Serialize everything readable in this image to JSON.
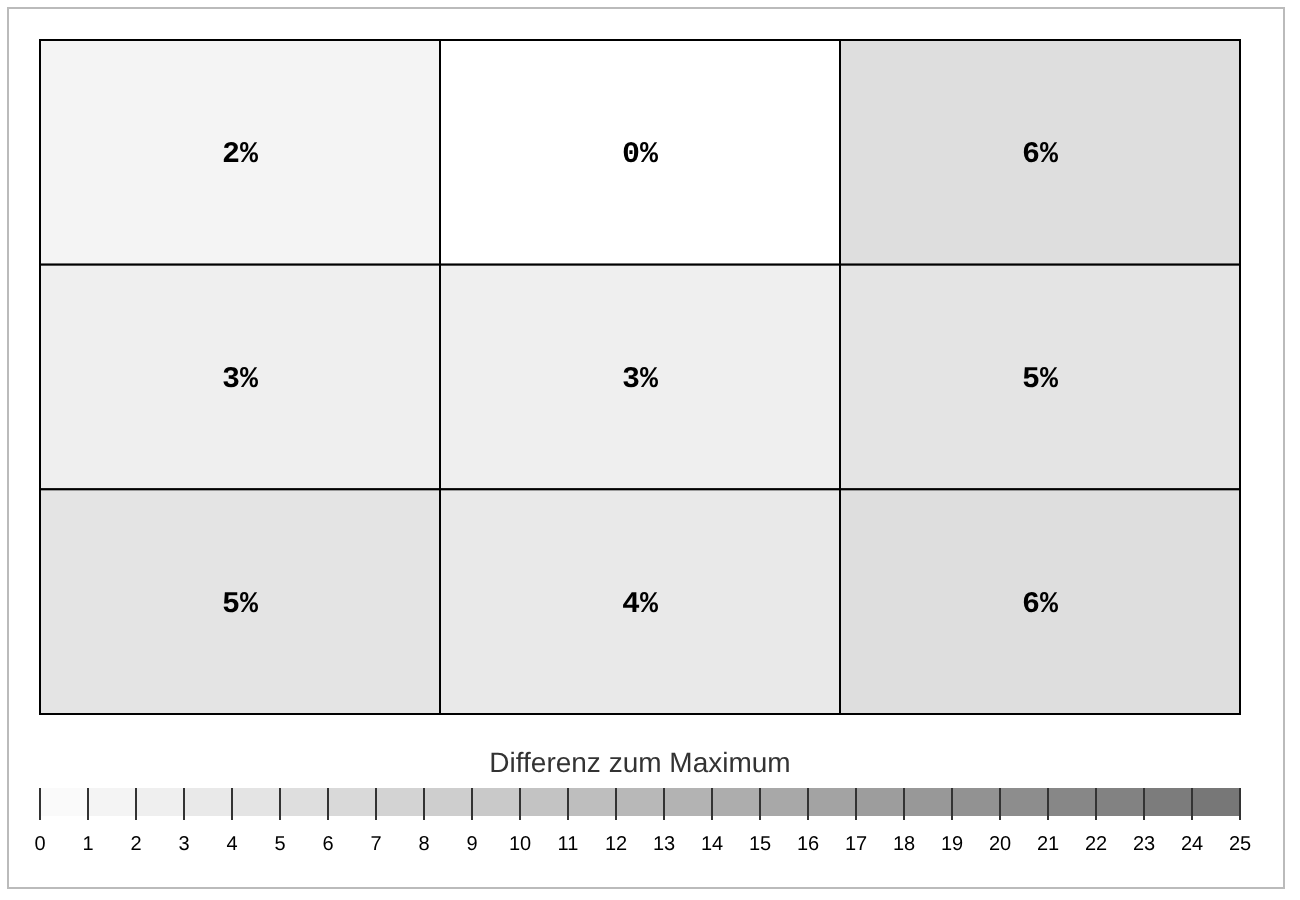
{
  "chart_data": {
    "type": "heatmap",
    "categories": [
      null,
      null,
      null
    ],
    "y_categories": [
      null,
      null,
      null
    ],
    "cells": [
      [
        2,
        0,
        6
      ],
      [
        3,
        3,
        5
      ],
      [
        5,
        4,
        6
      ]
    ],
    "cell_labels": [
      [
        "2%",
        "0%",
        "6%"
      ],
      [
        "3%",
        "3%",
        "5%"
      ],
      [
        "5%",
        "4%",
        "6%"
      ]
    ],
    "clabel": "Differenz zum Maximum",
    "clim": [
      0,
      25
    ],
    "cticks": [
      0,
      1,
      2,
      3,
      4,
      5,
      6,
      7,
      8,
      9,
      10,
      11,
      12,
      13,
      14,
      15,
      16,
      17,
      18,
      19,
      20,
      21,
      22,
      23,
      24,
      25
    ]
  }
}
